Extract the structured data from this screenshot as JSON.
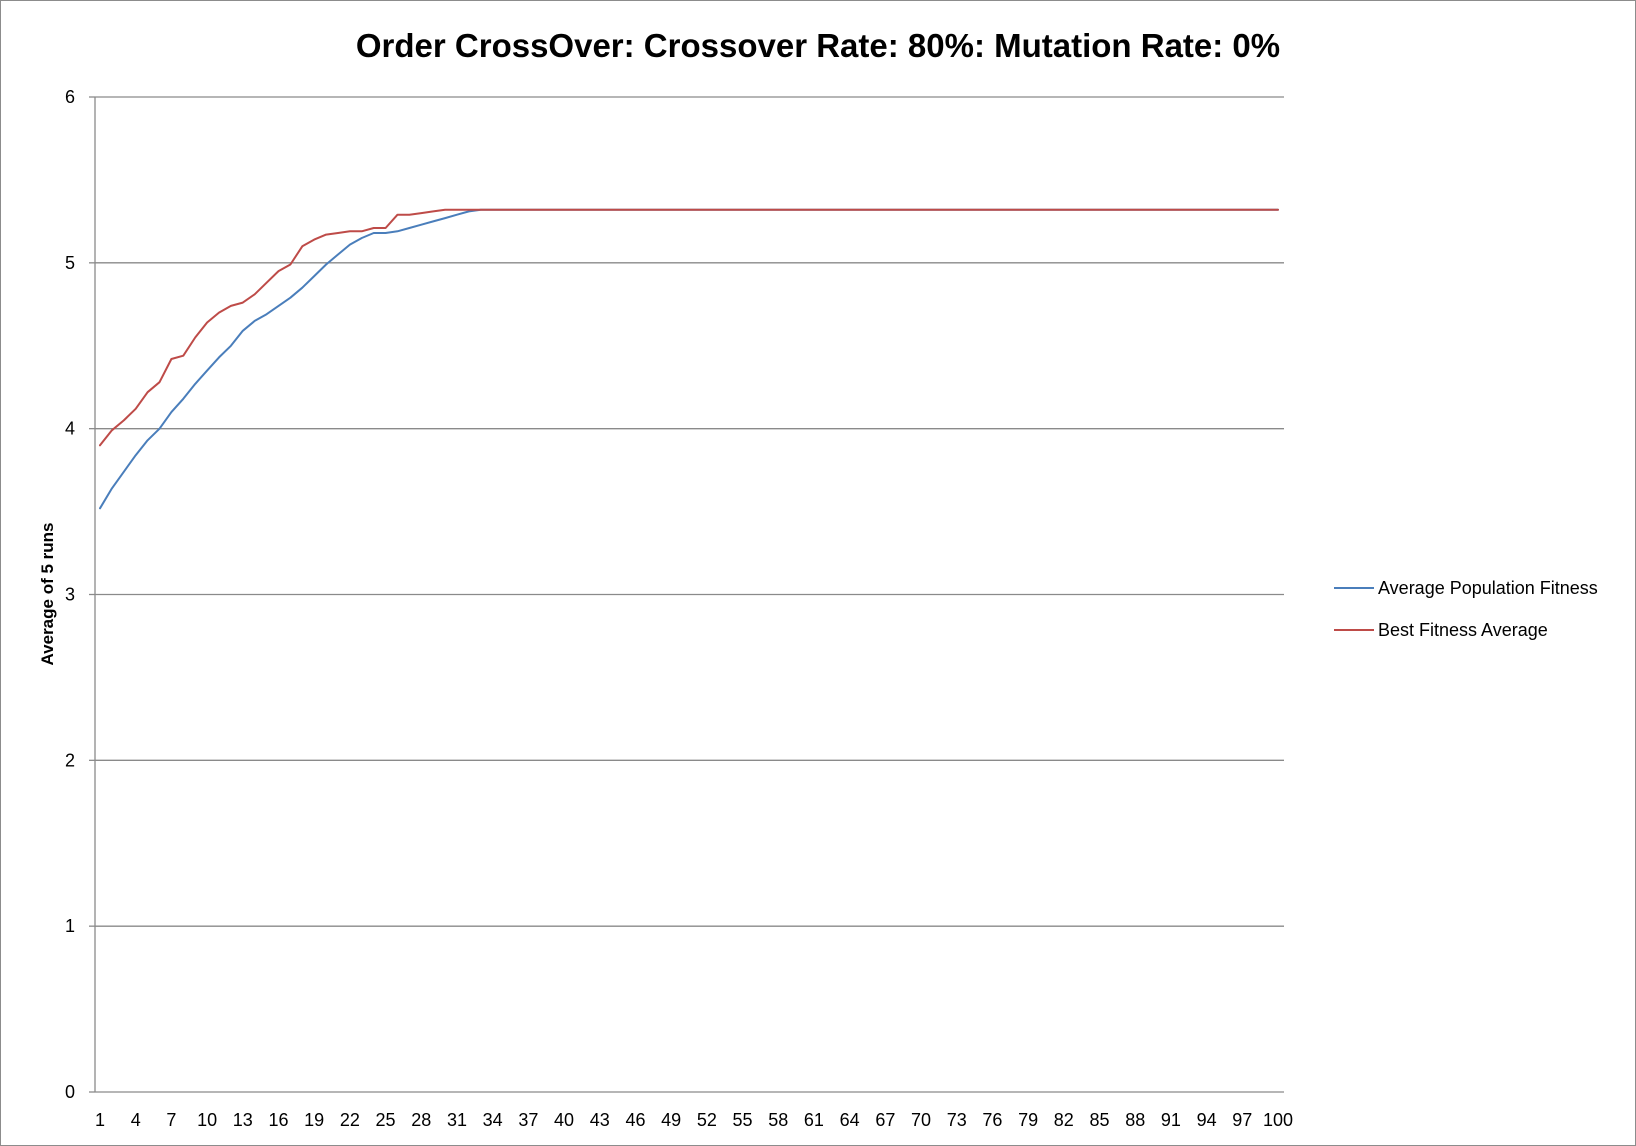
{
  "chart_data": {
    "type": "line",
    "title": "Order CrossOver: Crossover Rate: 80%: Mutation Rate: 0%",
    "xlabel": "",
    "ylabel": "Average of 5 runs",
    "ylim": [
      0,
      6
    ],
    "yticks": [
      "0",
      "1",
      "2",
      "3",
      "4",
      "5",
      "6"
    ],
    "xlim": [
      1,
      100
    ],
    "xticks": [
      "1",
      "4",
      "7",
      "10",
      "13",
      "16",
      "19",
      "22",
      "25",
      "28",
      "31",
      "34",
      "37",
      "40",
      "43",
      "46",
      "49",
      "52",
      "55",
      "58",
      "61",
      "64",
      "67",
      "70",
      "73",
      "76",
      "79",
      "82",
      "85",
      "88",
      "91",
      "94",
      "97",
      "100"
    ],
    "grid": "horizontal",
    "legend_position": "right",
    "series": [
      {
        "name": "Average Population Fitness",
        "color": "#4a7ebb",
        "points": [
          [
            1,
            3.52
          ],
          [
            2,
            3.64
          ],
          [
            3,
            3.74
          ],
          [
            4,
            3.84
          ],
          [
            5,
            3.93
          ],
          [
            6,
            4.0
          ],
          [
            7,
            4.1
          ],
          [
            8,
            4.18
          ],
          [
            9,
            4.27
          ],
          [
            10,
            4.35
          ],
          [
            11,
            4.43
          ],
          [
            12,
            4.5
          ],
          [
            13,
            4.59
          ],
          [
            14,
            4.65
          ],
          [
            15,
            4.69
          ],
          [
            16,
            4.74
          ],
          [
            17,
            4.79
          ],
          [
            18,
            4.85
          ],
          [
            19,
            4.92
          ],
          [
            20,
            4.99
          ],
          [
            21,
            5.05
          ],
          [
            22,
            5.11
          ],
          [
            23,
            5.15
          ],
          [
            24,
            5.18
          ],
          [
            25,
            5.18
          ],
          [
            26,
            5.19
          ],
          [
            27,
            5.21
          ],
          [
            28,
            5.23
          ],
          [
            29,
            5.25
          ],
          [
            30,
            5.27
          ],
          [
            31,
            5.29
          ],
          [
            32,
            5.31
          ],
          [
            33,
            5.32
          ],
          [
            100,
            5.32
          ]
        ]
      },
      {
        "name": "Best Fitness Average",
        "color": "#be4b48",
        "points": [
          [
            1,
            3.9
          ],
          [
            2,
            3.99
          ],
          [
            3,
            4.05
          ],
          [
            4,
            4.12
          ],
          [
            5,
            4.22
          ],
          [
            6,
            4.28
          ],
          [
            7,
            4.42
          ],
          [
            8,
            4.44
          ],
          [
            9,
            4.55
          ],
          [
            10,
            4.64
          ],
          [
            11,
            4.7
          ],
          [
            12,
            4.74
          ],
          [
            13,
            4.76
          ],
          [
            14,
            4.81
          ],
          [
            15,
            4.88
          ],
          [
            16,
            4.95
          ],
          [
            17,
            4.99
          ],
          [
            18,
            5.1
          ],
          [
            19,
            5.14
          ],
          [
            20,
            5.17
          ],
          [
            21,
            5.18
          ],
          [
            22,
            5.19
          ],
          [
            23,
            5.19
          ],
          [
            24,
            5.21
          ],
          [
            25,
            5.21
          ],
          [
            26,
            5.29
          ],
          [
            27,
            5.29
          ],
          [
            28,
            5.3
          ],
          [
            29,
            5.31
          ],
          [
            30,
            5.32
          ],
          [
            31,
            5.32
          ],
          [
            100,
            5.32
          ]
        ]
      }
    ]
  }
}
